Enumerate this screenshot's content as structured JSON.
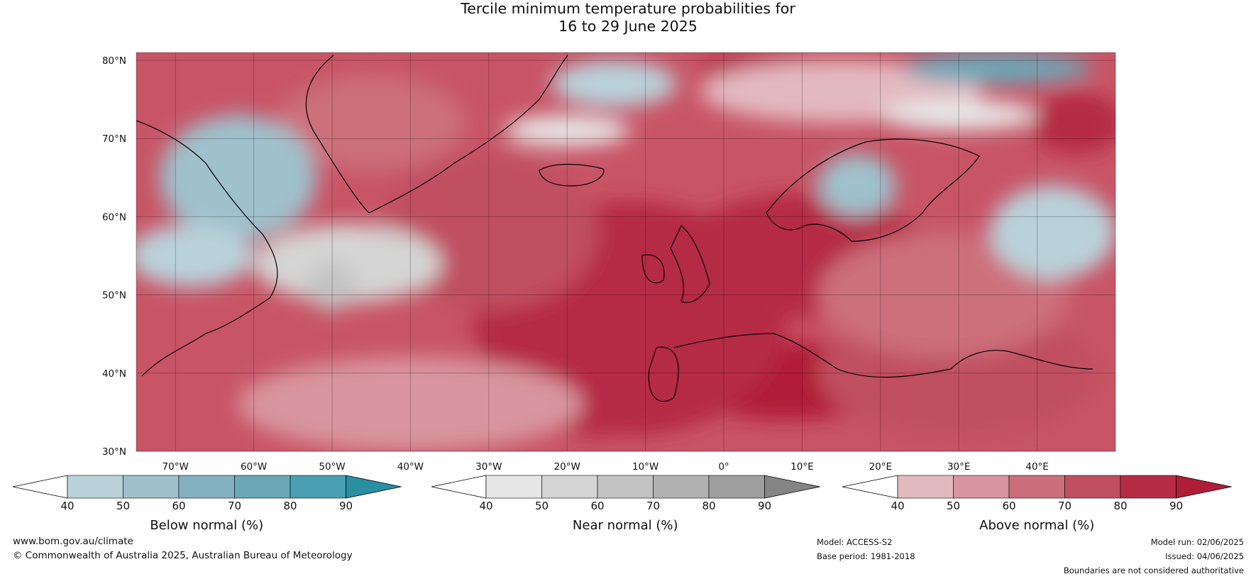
{
  "title": {
    "line1": "Tercile minimum temperature probabilities for",
    "line2": "16 to 29 June 2025"
  },
  "map": {
    "lon_range": [
      -75,
      50
    ],
    "lat_range": [
      30,
      81
    ],
    "lat_ticks": [
      {
        "value": 80,
        "label": "80°N"
      },
      {
        "value": 70,
        "label": "70°N"
      },
      {
        "value": 60,
        "label": "60°N"
      },
      {
        "value": 50,
        "label": "50°N"
      },
      {
        "value": 40,
        "label": "40°N"
      },
      {
        "value": 30,
        "label": "30°N"
      }
    ],
    "lon_ticks": [
      {
        "value": -70,
        "label": "70°W"
      },
      {
        "value": -60,
        "label": "60°W"
      },
      {
        "value": -50,
        "label": "50°W"
      },
      {
        "value": -40,
        "label": "40°W"
      },
      {
        "value": -30,
        "label": "30°W"
      },
      {
        "value": -20,
        "label": "20°W"
      },
      {
        "value": -10,
        "label": "10°W"
      },
      {
        "value": 0,
        "label": "0°"
      },
      {
        "value": 10,
        "label": "10°E"
      },
      {
        "value": 20,
        "label": "20°E"
      },
      {
        "value": 30,
        "label": "30°E"
      },
      {
        "value": 40,
        "label": "40°E"
      }
    ],
    "regions": [
      {
        "category": "above",
        "level": 90,
        "lon": -16,
        "lat": 42,
        "rlon": 12,
        "rlat": 10
      },
      {
        "category": "above",
        "level": 90,
        "lon": 8,
        "lat": 39,
        "rlon": 14,
        "rlat": 5
      },
      {
        "category": "above",
        "level": 80,
        "lon": -12,
        "lat": 47,
        "rlon": 20,
        "rlat": 15
      },
      {
        "category": "above",
        "level": 80,
        "lon": 10,
        "lat": 55,
        "rlon": 16,
        "rlat": 8
      },
      {
        "category": "above",
        "level": 80,
        "lon": 45,
        "lat": 72,
        "rlon": 6,
        "rlat": 4
      },
      {
        "category": "above",
        "level": 80,
        "lon": 5,
        "lat": 79,
        "rlon": 8,
        "rlat": 2
      },
      {
        "category": "above",
        "level": 70,
        "lon": -30,
        "lat": 58,
        "rlon": 14,
        "rlat": 10
      },
      {
        "category": "above",
        "level": 70,
        "lon": 30,
        "lat": 40,
        "rlon": 18,
        "rlat": 8
      },
      {
        "category": "above",
        "level": 60,
        "lon": -45,
        "lat": 72,
        "rlon": 12,
        "rlat": 6
      },
      {
        "category": "above",
        "level": 60,
        "lon": 28,
        "lat": 50,
        "rlon": 16,
        "rlat": 8
      },
      {
        "category": "above",
        "level": 50,
        "lon": -40,
        "lat": 36,
        "rlon": 22,
        "rlat": 6
      },
      {
        "category": "above",
        "level": 40,
        "lon": 15,
        "lat": 76,
        "rlon": 18,
        "rlat": 4
      },
      {
        "category": "below",
        "level": 50,
        "lon": -62,
        "lat": 65,
        "rlon": 10,
        "rlat": 8
      },
      {
        "category": "below",
        "level": 40,
        "lon": -68,
        "lat": 55,
        "rlon": 8,
        "rlat": 4
      },
      {
        "category": "below",
        "level": 70,
        "lon": 35,
        "lat": 79,
        "rlon": 12,
        "rlat": 2
      },
      {
        "category": "below",
        "level": 50,
        "lon": 17,
        "lat": 64,
        "rlon": 5,
        "rlat": 4
      },
      {
        "category": "below",
        "level": 40,
        "lon": 42,
        "lat": 58,
        "rlon": 8,
        "rlat": 6
      },
      {
        "category": "below",
        "level": 40,
        "lon": -14,
        "lat": 77,
        "rlon": 8,
        "rlat": 3
      },
      {
        "category": "near",
        "level": 50,
        "lon": -48,
        "lat": 54,
        "rlon": 12,
        "rlat": 5
      },
      {
        "category": "near",
        "level": 40,
        "lon": -20,
        "lat": 71,
        "rlon": 8,
        "rlat": 2
      },
      {
        "category": "near",
        "level": 40,
        "lon": 30,
        "lat": 73,
        "rlon": 10,
        "rlat": 2
      },
      {
        "category": "near",
        "level": 60,
        "lon": -50,
        "lat": 51,
        "rlon": 3,
        "rlat": 3
      }
    ]
  },
  "colorbars": [
    {
      "category": "below",
      "title": "Below normal (%)",
      "ticks": [
        "40",
        "50",
        "60",
        "70",
        "80",
        "90"
      ],
      "colors": [
        "#b9d1d9",
        "#9fc1cc",
        "#84b1c1",
        "#6aa8b8",
        "#4b9fb2",
        "#2a8fa3"
      ]
    },
    {
      "category": "near",
      "title": "Near normal (%)",
      "ticks": [
        "40",
        "50",
        "60",
        "70",
        "80",
        "90"
      ],
      "colors": [
        "#e6e6e6",
        "#d4d4d4",
        "#c3c3c3",
        "#b1b1b1",
        "#9f9f9f",
        "#858585"
      ]
    },
    {
      "category": "above",
      "title": "Above normal (%)",
      "ticks": [
        "40",
        "50",
        "60",
        "70",
        "80",
        "90"
      ],
      "colors": [
        "#e3b9c0",
        "#d8959f",
        "#cc6f7c",
        "#c04f60",
        "#b52c44",
        "#b11c38"
      ]
    }
  ],
  "footer": {
    "website": "www.bom.gov.au/climate",
    "copyright": "© Commonwealth of Australia 2025, Australian Bureau of Meteorology",
    "model": "Model: ACCESS-S2",
    "base_period": "Base period: 1981-2018",
    "model_run": "Model run: 02/06/2025",
    "issued": "Issued: 04/06/2025",
    "disclaimer": "Boundaries are not considered authoritative"
  }
}
